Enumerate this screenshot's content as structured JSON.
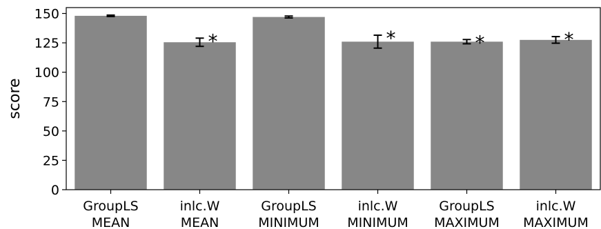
{
  "chart_data": {
    "type": "bar",
    "categories": [
      [
        "GroupLS",
        "MEAN"
      ],
      [
        "inlc.W",
        "MEAN"
      ],
      [
        "GroupLS",
        "MINIMUM"
      ],
      [
        "inlc.W",
        "MINIMUM"
      ],
      [
        "GroupLS",
        "MAXIMUM"
      ],
      [
        "inlc.W",
        "MAXIMUM"
      ]
    ],
    "values": [
      148,
      125.5,
      147,
      126,
      126,
      127.5
    ],
    "errors": [
      0.6,
      3.5,
      0.8,
      5.5,
      1.8,
      2.8
    ],
    "significance": [
      "",
      "*",
      "",
      "*",
      "*",
      "*"
    ],
    "ylabel": "score",
    "ylim": [
      0,
      155
    ],
    "yticks": [
      0,
      25,
      50,
      75,
      100,
      125,
      150
    ],
    "bar_color": "#878787",
    "grid": false,
    "legend": "none"
  }
}
